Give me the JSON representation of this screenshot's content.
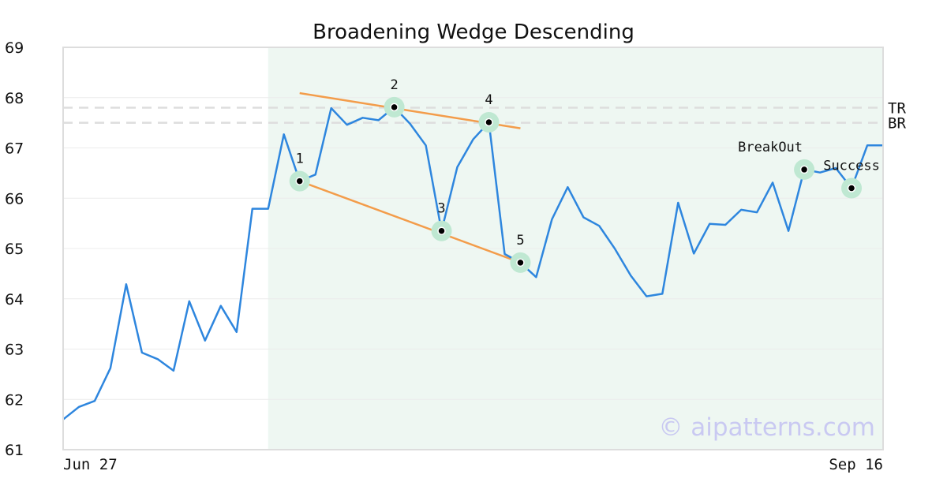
{
  "chart_data": {
    "type": "line",
    "title": "Broadening Wedge Descending",
    "xlabel": "",
    "ylabel": "",
    "ylim": [
      61,
      69
    ],
    "yticks": [
      "61",
      "62",
      "63",
      "64",
      "65",
      "66",
      "67",
      "68",
      "69"
    ],
    "xtick_labels": {
      "start": "Jun 27",
      "end": "Sep 16"
    },
    "grid": true,
    "colors": {
      "line": "#2e86de",
      "trend": "#f39c4a",
      "highlight_band": "#eef7f2",
      "marker_halo": "#bfe8d2",
      "reference": "#dddddd"
    },
    "series": [
      {
        "values": [
          61.6,
          61.85,
          61.97,
          62.62,
          64.29,
          62.93,
          62.8,
          62.57,
          63.95,
          63.17,
          63.86,
          63.34,
          65.79,
          65.79,
          67.27,
          66.34,
          66.47,
          67.79,
          67.46,
          67.6,
          67.55,
          67.81,
          67.48,
          67.05,
          65.35,
          66.62,
          67.17,
          67.51,
          64.89,
          64.72,
          64.43,
          65.58,
          66.22,
          65.62,
          65.45,
          64.99,
          64.46,
          64.05,
          64.1,
          65.91,
          64.9,
          65.49,
          65.47,
          65.77,
          65.72,
          66.31,
          65.35,
          66.57,
          66.51,
          66.6,
          66.2,
          67.05,
          67.05
        ]
      }
    ],
    "highlight_range": [
      13,
      52
    ],
    "pattern_points": [
      {
        "label": "1",
        "index": 15,
        "value": 66.34
      },
      {
        "label": "2",
        "index": 21,
        "value": 67.81
      },
      {
        "label": "3",
        "index": 24,
        "value": 65.35
      },
      {
        "label": "4",
        "index": 27,
        "value": 67.51
      },
      {
        "label": "5",
        "index": 29,
        "value": 64.72
      }
    ],
    "event_points": [
      {
        "label": "BreakOut",
        "index": 47,
        "value": 66.57
      },
      {
        "label": "Success",
        "index": 50,
        "value": 66.2
      }
    ],
    "trend_lines": [
      {
        "from": {
          "index": 15,
          "value": 68.09
        },
        "to": {
          "index": 29,
          "value": 67.39
        }
      },
      {
        "from": {
          "index": 15,
          "value": 66.34
        },
        "to": {
          "index": 29,
          "value": 64.72
        }
      }
    ],
    "reference_lines": [
      {
        "label": "TR",
        "value": 67.8
      },
      {
        "label": "BR",
        "value": 67.5
      }
    ],
    "watermark": "© aipatterns.com"
  }
}
